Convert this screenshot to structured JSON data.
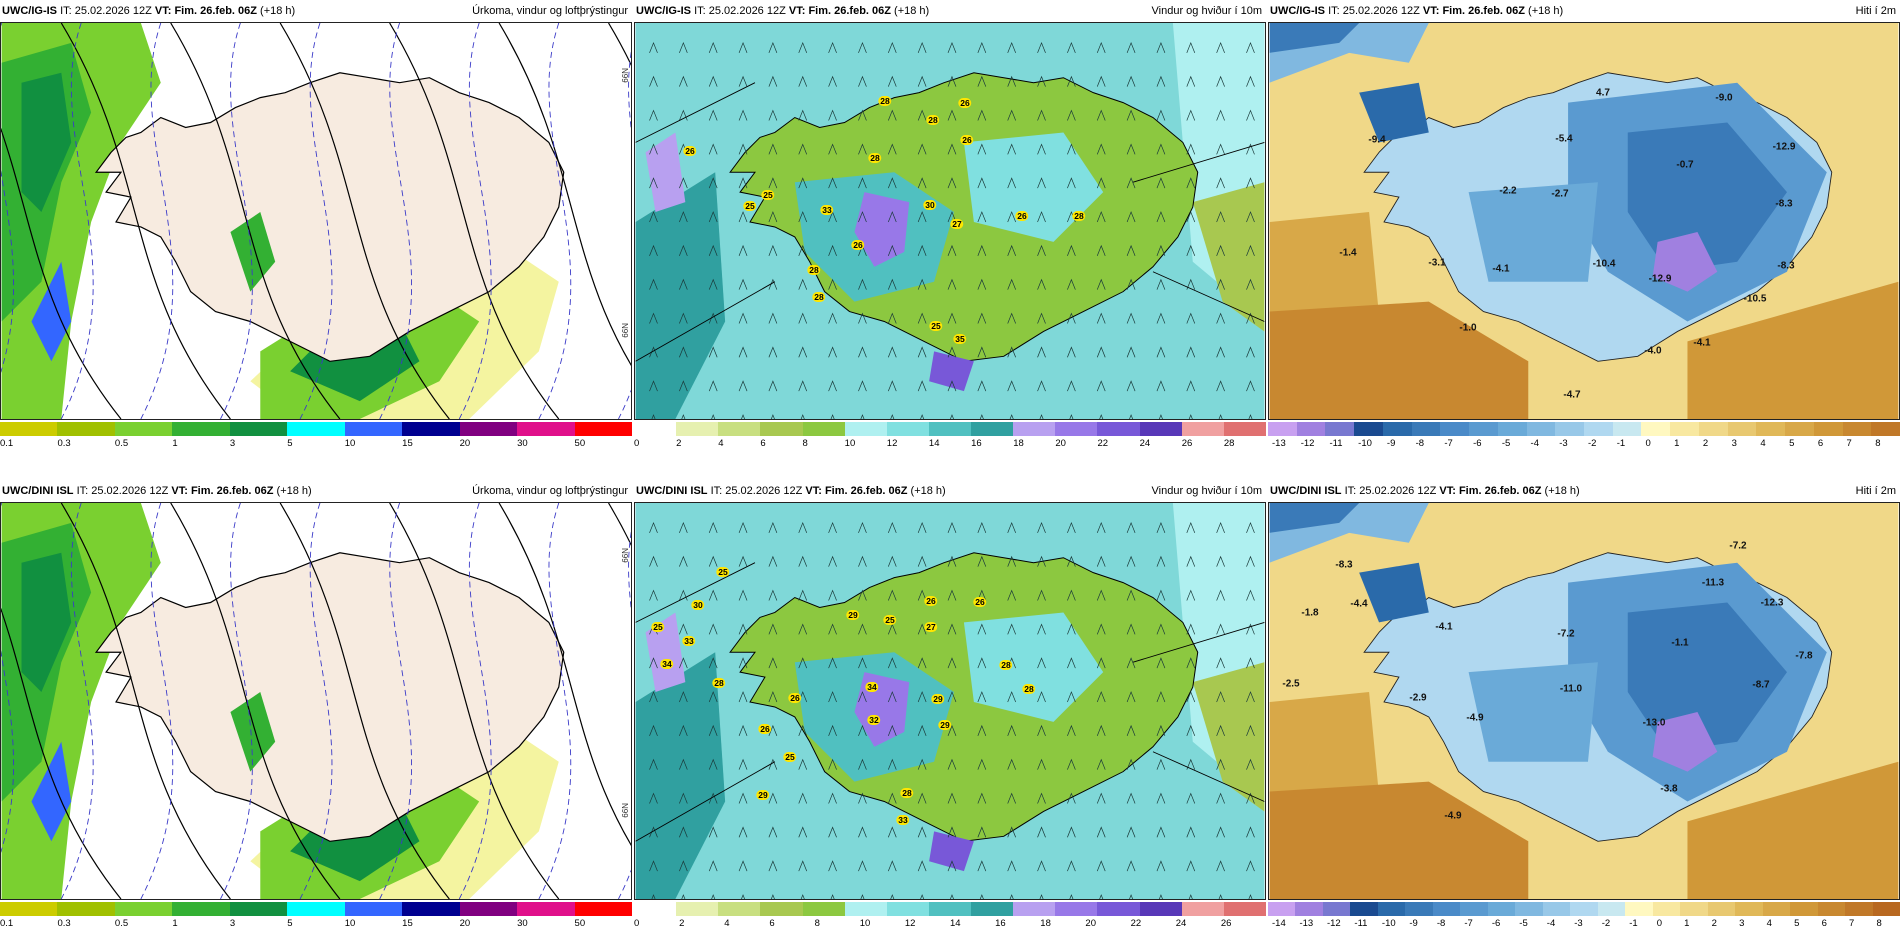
{
  "panels": [
    {
      "id": "p1",
      "model": "UWC/IG-IS",
      "it_label": "IT:",
      "it": "25.02.2026 12Z",
      "vt_label": "VT:",
      "vt": "Fim. 26.feb. 06Z",
      "lead": "(+18 h)",
      "title": "Úrkoma, vindur og loftþrýstingur",
      "kind": "precip",
      "ticks": [
        "0.1",
        "0.3",
        "0.5",
        "1",
        "3",
        "5",
        "10",
        "15",
        "20",
        "30",
        "50"
      ],
      "edge": [
        "N99",
        "N99"
      ]
    },
    {
      "id": "p2",
      "model": "UWC/IG-IS",
      "it_label": "IT:",
      "it": "25.02.2026 12Z",
      "vt_label": "VT:",
      "vt": "Fim. 26.feb. 06Z",
      "lead": "(+18 h)",
      "title": "Vindur og hviður í 10m",
      "kind": "wind",
      "ticks": [
        "0",
        "2",
        "4",
        "6",
        "8",
        "10",
        "12",
        "14",
        "16",
        "18",
        "20",
        "22",
        "24",
        "26",
        "28"
      ],
      "labels": [
        "26",
        "28",
        "26",
        "28",
        "26",
        "28",
        "25",
        "25",
        "33",
        "30",
        "26",
        "28",
        "28",
        "27",
        "26",
        "28",
        "25",
        "35"
      ]
    },
    {
      "id": "p3",
      "model": "UWC/IG-IS",
      "it_label": "IT:",
      "it": "25.02.2026 12Z",
      "vt_label": "VT:",
      "vt": "Fim. 26.feb. 06Z",
      "lead": "(+18 h)",
      "title": "Hiti í 2m",
      "kind": "temp",
      "ticks": [
        "-13",
        "-12",
        "-11",
        "-10",
        "-9",
        "-8",
        "-7",
        "-6",
        "-5",
        "-4",
        "-3",
        "-2",
        "-1",
        "0",
        "1",
        "2",
        "3",
        "4",
        "5",
        "6",
        "7",
        "8"
      ],
      "labels": [
        "4.7",
        "-9.0",
        "-9.4",
        "-5.4",
        "-12.9",
        "-0.7",
        "-2.2",
        "-2.7",
        "-8.3",
        "-1.4",
        "-3.1",
        "-4.1",
        "-10.4",
        "-8.3",
        "-12.9",
        "-10.5",
        "-1.0",
        "-4.0",
        "-4.1",
        "-4.7"
      ]
    },
    {
      "id": "p4",
      "model": "UWC/DINI ISL",
      "it_label": "IT:",
      "it": "25.02.2026 12Z",
      "vt_label": "VT:",
      "vt": "Fim. 26.feb. 06Z",
      "lead": "(+18 h)",
      "title": "Úrkoma, vindur og loftþrýstingur",
      "kind": "precip",
      "ticks": [
        "0.1",
        "0.3",
        "0.5",
        "1",
        "3",
        "5",
        "10",
        "15",
        "20",
        "30",
        "50"
      ],
      "edge": [
        "N99",
        "N99"
      ]
    },
    {
      "id": "p5",
      "model": "UWC/DINI ISL",
      "it_label": "IT:",
      "it": "25.02.2026 12Z",
      "vt_label": "VT:",
      "vt": "Fim. 26.feb. 06Z",
      "lead": "(+18 h)",
      "title": "Vindur og hviður í 10m",
      "kind": "wind",
      "ticks": [
        "0",
        "2",
        "4",
        "6",
        "8",
        "10",
        "12",
        "14",
        "16",
        "18",
        "20",
        "22",
        "24",
        "26"
      ],
      "labels": [
        "25",
        "30",
        "25",
        "33",
        "34",
        "28",
        "26",
        "29",
        "25",
        "26",
        "27",
        "28",
        "26",
        "34",
        "32",
        "29",
        "29",
        "28",
        "26",
        "25",
        "29",
        "28",
        "33"
      ]
    },
    {
      "id": "p6",
      "model": "UWC/DINI ISL",
      "it_label": "IT:",
      "it": "25.02.2026 12Z",
      "vt_label": "VT:",
      "vt": "Fim. 26.feb. 06Z",
      "lead": "(+18 h)",
      "title": "Hiti í 2m",
      "kind": "temp",
      "ticks": [
        "-14",
        "-13",
        "-12",
        "-11",
        "-10",
        "-9",
        "-8",
        "-7",
        "-6",
        "-5",
        "-4",
        "-3",
        "-2",
        "-1",
        "0",
        "1",
        "2",
        "3",
        "4",
        "5",
        "6",
        "7",
        "8"
      ],
      "labels": [
        "-7.2",
        "-8.3",
        "-11.3",
        "-12.3",
        "-1.8",
        "-4.4",
        "-4.1",
        "-7.2",
        "-1.1",
        "-7.8",
        "-2.5",
        "-2.9",
        "-11.0",
        "-8.7",
        "-4.9",
        "-13.0",
        "-3.8",
        "-4.9"
      ]
    }
  ],
  "colors": {
    "precip": [
      "#cccc00",
      "#a0c000",
      "#7ad030",
      "#33b033",
      "#119040",
      "#00ffff",
      "#3366ff",
      "#000090",
      "#800080",
      "#e0108a",
      "#ff0000"
    ],
    "wind": [
      "#ffffff",
      "#e6f0b0",
      "#c8df80",
      "#a8c850",
      "#8cc840",
      "#aff0f0",
      "#80e0e0",
      "#50c0c0",
      "#30a0a0",
      "#b8a0f0",
      "#9878e8",
      "#7858d8",
      "#5838b8",
      "#f0a0a0",
      "#e07070"
    ],
    "temp": [
      "#c8a0f0",
      "#a080e0",
      "#7878d0",
      "#1a4a90",
      "#2a6aaa",
      "#3a7ab8",
      "#4a8ac8",
      "#5a9ad0",
      "#6aaad8",
      "#80b8e0",
      "#98c8e8",
      "#b0d8f0",
      "#c8e8f0",
      "#fff8c0",
      "#f8e8a0",
      "#f0d888",
      "#e8c870",
      "#e0b858",
      "#d8a848",
      "#d09838",
      "#c88830",
      "#c07828",
      "#b86820"
    ],
    "land_precip": "#f7ebe0",
    "sea_precip": "#ffffff"
  }
}
